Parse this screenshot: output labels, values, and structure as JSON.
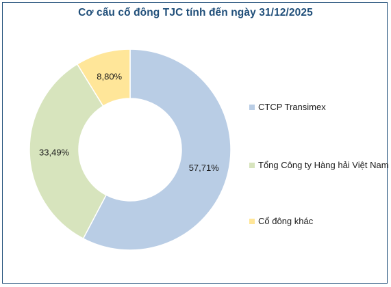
{
  "chart_data": {
    "type": "pie",
    "style": "donut",
    "title": "Cơ cấu cổ đông TJC tính đến ngày 31/12/2025",
    "slices": [
      {
        "label": "CTCP Transimex",
        "value": 57.71,
        "value_label": "57,71%",
        "color": "#b9cde5"
      },
      {
        "label": "Tổng Công ty Hàng hải Việt Nam",
        "value": 33.49,
        "value_label": "33,49%",
        "color": "#d7e4bd"
      },
      {
        "label": "Cổ đông khác",
        "value": 8.8,
        "value_label": "8,80%",
        "color": "#ffe699"
      }
    ],
    "legend_position": "right"
  }
}
